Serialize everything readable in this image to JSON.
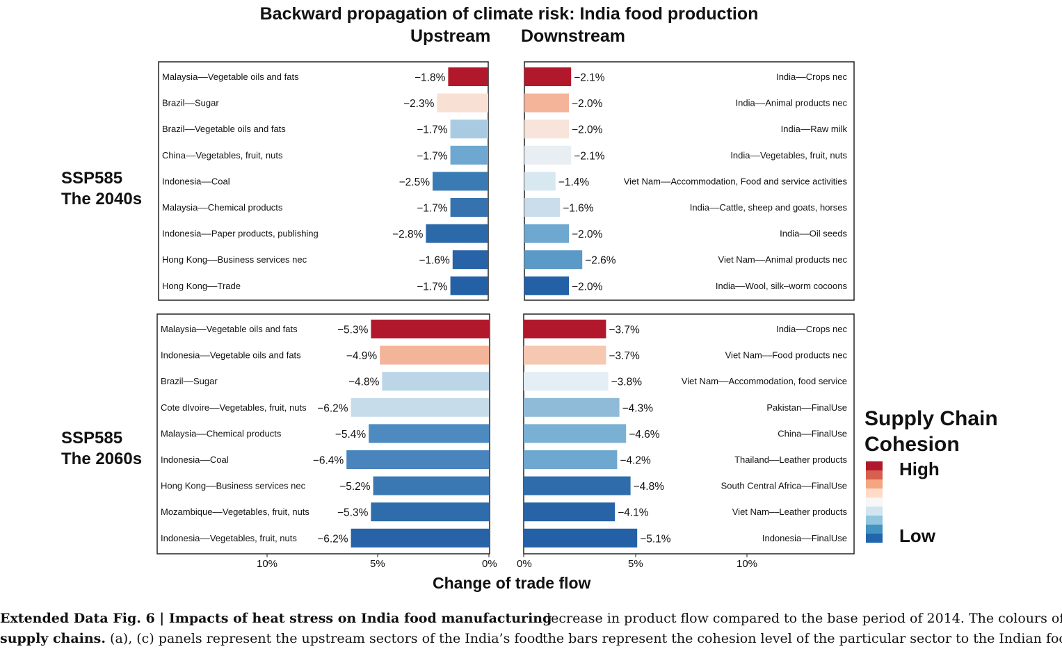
{
  "title": "Backward propagation of climate risk: India food production",
  "upstream_label": "Upstream",
  "downstream_label": "Downstream",
  "row_labels": [
    {
      "line1": "SSP585",
      "line2": "The 2040s"
    },
    {
      "line1": "SSP585",
      "line2": "The 2060s"
    }
  ],
  "xaxis_label": "Change of trade flow",
  "ticks": {
    "upstream": [
      "10%",
      "5%",
      "0%"
    ],
    "downstream": [
      "0%",
      "5%",
      "10%"
    ]
  },
  "legend": {
    "title_line1": "Supply Chain",
    "title_line2": "Cohesion",
    "high": "High",
    "low": "Low",
    "colors": [
      "#b2182b",
      "#d6604d",
      "#f4a582",
      "#fddbc7",
      "#f7f7f7",
      "#d1e5f0",
      "#92c5de",
      "#4393c3",
      "#2166ac"
    ]
  },
  "caption": {
    "left_line1_bold": "Extended Data Fig. 6 | Impacts of heat stress on India food manufacturing",
    "left_line2_bold": "supply chains.",
    "left_line2_rest": " (a), (c) panels represent the upstream sectors of the India’s food",
    "right_line1": "decrease in product flow compared to the base period of 2014. The colours of",
    "right_line2": "the bars represent the cohesion level of the particular sector to the Indian food"
  },
  "chart_data": [
    {
      "type": "bar",
      "panel": "upstream",
      "scenario": "SSP585 The 2040s",
      "xlim": [
        0,
        15
      ],
      "categories": [
        "Malaysia––Vegetable oils and fats",
        "Brazil––Sugar",
        "Brazil––Vegetable oils and fats",
        "China––Vegetables, fruit, nuts",
        "Indonesia––Coal",
        "Malaysia––Chemical products",
        "Indonesia––Paper products, publishing",
        "Hong Kong––Business services nec",
        "Hong Kong––Trade"
      ],
      "values": [
        1.8,
        2.3,
        1.7,
        1.7,
        2.5,
        1.7,
        2.8,
        1.6,
        1.7
      ],
      "value_labels": [
        "−1.8%",
        "−2.3%",
        "−1.7%",
        "−1.7%",
        "−2.5%",
        "−1.7%",
        "−2.8%",
        "−1.6%",
        "−1.7%"
      ],
      "colors": [
        "#b2182b",
        "#f8e0d4",
        "#a9cbe2",
        "#6ea7cf",
        "#3a7bb4",
        "#3572ae",
        "#2c69a9",
        "#2763a6",
        "#2360a5"
      ]
    },
    {
      "type": "bar",
      "panel": "downstream",
      "scenario": "SSP585 The 2040s",
      "xlim": [
        0,
        15
      ],
      "categories": [
        "India––Crops nec",
        "India––Animal products nec",
        "India––Raw milk",
        "India––Vegetables, fruit, nuts",
        "Viet Nam––Accommodation, Food and service activities",
        "India––Cattle, sheep and goats, horses",
        "India––Oil seeds",
        "Viet Nam––Animal products nec",
        "India––Wool, silk–worm cocoons"
      ],
      "values": [
        2.1,
        2.0,
        2.0,
        2.1,
        1.4,
        1.6,
        2.0,
        2.6,
        2.0
      ],
      "value_labels": [
        "−2.1%",
        "−2.0%",
        "−2.0%",
        "−2.1%",
        "−1.4%",
        "−1.6%",
        "−2.0%",
        "−2.6%",
        "−2.0%"
      ],
      "colors": [
        "#b2182b",
        "#f4b49a",
        "#f8e4da",
        "#e9eef3",
        "#d8e8f1",
        "#c9ddec",
        "#6ea7cf",
        "#5b9ac6",
        "#2360a5"
      ]
    },
    {
      "type": "bar",
      "panel": "upstream",
      "scenario": "SSP585 The 2060s",
      "xlim": [
        0,
        15
      ],
      "categories": [
        "Malaysia––Vegetable oils and fats",
        "Indonesia––Vegetable oils and fats",
        "Brazil––Sugar",
        "Cote dIvoire––Vegetables, fruit, nuts",
        "Malaysia––Chemical products",
        "Indonesia––Coal",
        "Hong Kong––Business services nec",
        "Mozambique––Vegetables, fruit, nuts",
        "Indonesia––Vegetables, fruit, nuts"
      ],
      "values": [
        5.3,
        4.9,
        4.8,
        6.2,
        5.4,
        6.4,
        5.2,
        5.3,
        6.2
      ],
      "value_labels": [
        "−5.3%",
        "−4.9%",
        "−4.8%",
        "−6.2%",
        "−5.4%",
        "−6.4%",
        "−5.2%",
        "−5.3%",
        "−6.2%"
      ],
      "colors": [
        "#b2182b",
        "#f4b49a",
        "#bcd6e8",
        "#c7dceb",
        "#4c8ac0",
        "#4a84bd",
        "#3a78b3",
        "#2f6cab",
        "#2763a6"
      ]
    },
    {
      "type": "bar",
      "panel": "downstream",
      "scenario": "SSP585 The 2060s",
      "xlim": [
        0,
        15
      ],
      "categories": [
        "India––Crops nec",
        "Viet Nam––Food products nec",
        "Viet Nam––Accommodation, food service",
        "Pakistan––FinalUse",
        "China––FinalUse",
        "Thailand––Leather products",
        "South Central Africa––FinalUse",
        "Viet Nam––Leather products",
        "Indonesia––FinalUse"
      ],
      "values": [
        3.7,
        3.7,
        3.8,
        4.3,
        4.6,
        4.2,
        4.8,
        4.1,
        5.1
      ],
      "value_labels": [
        "−3.7%",
        "−3.7%",
        "−3.8%",
        "−4.3%",
        "−4.6%",
        "−4.2%",
        "−4.8%",
        "−4.1%",
        "−5.1%"
      ],
      "colors": [
        "#b2182b",
        "#f6c7b1",
        "#e4eef5",
        "#8fbad8",
        "#7ab0d3",
        "#6ea7cf",
        "#2f6cab",
        "#2763a6",
        "#2360a5"
      ]
    }
  ]
}
